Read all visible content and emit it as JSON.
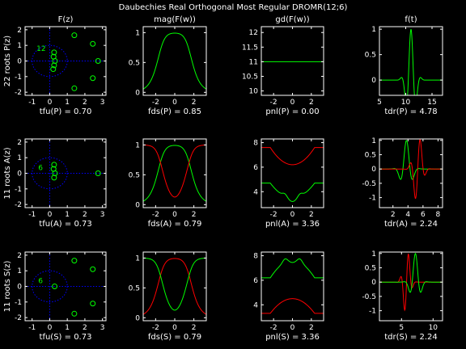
{
  "title": "Daubechies Real Orthogonal Most Regular DROMR(12;6)",
  "colors": {
    "background": "#000000",
    "axes": "#ffffff",
    "green": "#00ff00",
    "red": "#ff0000",
    "blue": "#0000ff"
  },
  "chart_data": [
    {
      "id": "p-roots",
      "type": "scatter",
      "title": "F(z)",
      "ylabel": "22 roots P(z)",
      "xlabel": "tfu(P) = 0.70",
      "xlim": [
        -1.4,
        3.2
      ],
      "ylim": [
        -2.2,
        2.2
      ],
      "xticks": [
        -1,
        0,
        1,
        2,
        3
      ],
      "yticks": [
        -2,
        -1,
        0,
        1,
        2
      ],
      "unit_circle": true,
      "multiplicity": {
        "value": "12",
        "at": [
          -0.75,
          0.65
        ]
      },
      "points": [
        [
          1.4,
          1.65
        ],
        [
          2.45,
          1.1
        ],
        [
          2.75,
          0.0
        ],
        [
          2.45,
          -1.1
        ],
        [
          1.4,
          -1.75
        ],
        [
          0.25,
          0.55
        ],
        [
          0.22,
          0.28
        ],
        [
          0.3,
          0.0
        ],
        [
          0.25,
          -0.28
        ],
        [
          0.2,
          -0.52
        ]
      ]
    },
    {
      "id": "p-mag",
      "type": "line",
      "title": "mag(F(w))",
      "xlabel": "fds(P) = 0.85",
      "xlim": [
        -3.3,
        3.3
      ],
      "ylim": [
        -0.05,
        1.1
      ],
      "xticks": [
        -2,
        0,
        2
      ],
      "yticks": [
        0,
        0.5,
        1
      ],
      "series": [
        {
          "color": "green",
          "kind": "mag_green"
        }
      ]
    },
    {
      "id": "p-gd",
      "type": "line",
      "title": "gd(F(w))",
      "xlabel": "pnl(P) = 0.00",
      "xlim": [
        -3.3,
        3.3
      ],
      "ylim": [
        9.85,
        12.2
      ],
      "xticks": [
        -2,
        0,
        2
      ],
      "yticks": [
        10,
        10.5,
        11,
        11.5,
        12
      ],
      "series": [
        {
          "color": "green",
          "kind": "const",
          "value": 11
        }
      ]
    },
    {
      "id": "p-ft",
      "type": "line",
      "title": "f(t)",
      "xlabel": "tdr(P) = 4.78",
      "xlim": [
        5,
        17
      ],
      "ylim": [
        -0.3,
        1.05
      ],
      "xticks": [
        5,
        10,
        15
      ],
      "yticks": [
        0,
        0.5,
        1
      ],
      "series": [
        {
          "color": "green",
          "kind": "wavelet",
          "center": 11,
          "width": 1.1,
          "freq": 1.4,
          "amp": 1.0
        }
      ]
    },
    {
      "id": "a-roots",
      "type": "scatter",
      "ylabel": "11 roots A(z)",
      "xlabel": "tfu(A) = 0.73",
      "xlim": [
        -1.4,
        3.2
      ],
      "ylim": [
        -2.2,
        2.2
      ],
      "xticks": [
        -1,
        0,
        1,
        2,
        3
      ],
      "yticks": [
        -2,
        -1,
        0,
        1,
        2
      ],
      "unit_circle": true,
      "multiplicity": {
        "value": "6",
        "at": [
          -0.65,
          0.2
        ]
      },
      "points": [
        [
          0.25,
          0.55
        ],
        [
          0.22,
          0.28
        ],
        [
          0.3,
          0.0
        ],
        [
          0.25,
          -0.28
        ],
        [
          2.75,
          0.0
        ]
      ]
    },
    {
      "id": "a-mag",
      "type": "line",
      "xlabel": "fds(A) = 0.79",
      "xlim": [
        -3.3,
        3.3
      ],
      "ylim": [
        -0.05,
        1.1
      ],
      "xticks": [
        -2,
        0,
        2
      ],
      "yticks": [
        0,
        0.5,
        1
      ],
      "series": [
        {
          "color": "green",
          "kind": "mag_green"
        },
        {
          "color": "red",
          "kind": "mag_red"
        }
      ]
    },
    {
      "id": "a-gd",
      "type": "line",
      "xlabel": "pnl(A) = 3.36",
      "xlim": [
        -3.3,
        3.3
      ],
      "ylim": [
        2.7,
        8.3
      ],
      "xticks": [
        -2,
        0,
        2
      ],
      "yticks": [
        4,
        6,
        8
      ],
      "series": [
        {
          "color": "red",
          "kind": "gd_a_red"
        },
        {
          "color": "green",
          "kind": "gd_a_green"
        }
      ]
    },
    {
      "id": "a-ft",
      "type": "line",
      "xlabel": "tdr(A) = 2.24",
      "xlim": [
        0.2,
        8.6
      ],
      "ylim": [
        -1.35,
        1.05
      ],
      "xticks": [
        2,
        4,
        6,
        8
      ],
      "yticks": [
        -1,
        -0.5,
        0,
        0.5,
        1
      ],
      "series": [
        {
          "color": "green",
          "kind": "wavelet",
          "center": 3.8,
          "width": 0.85,
          "freq": 1.5,
          "amp": 1.0
        },
        {
          "color": "red",
          "kind": "wavelet_odd",
          "center": 5.3,
          "width": 0.75,
          "freq": 2.0,
          "amp": 1.25
        }
      ]
    },
    {
      "id": "s-roots",
      "type": "scatter",
      "ylabel": "11 roots S(z)",
      "xlabel": "tfu(S) = 0.73",
      "xlim": [
        -1.4,
        3.2
      ],
      "ylim": [
        -2.2,
        2.2
      ],
      "xticks": [
        -1,
        0,
        1,
        2,
        3
      ],
      "yticks": [
        -2,
        -1,
        0,
        1,
        2
      ],
      "unit_circle": true,
      "multiplicity": {
        "value": "6",
        "at": [
          -0.65,
          0.2
        ]
      },
      "points": [
        [
          1.4,
          1.65
        ],
        [
          2.45,
          1.1
        ],
        [
          0.28,
          0.0
        ],
        [
          2.45,
          -1.1
        ],
        [
          1.4,
          -1.75
        ]
      ]
    },
    {
      "id": "s-mag",
      "type": "line",
      "xlabel": "fds(S) = 0.79",
      "xlim": [
        -3.3,
        3.3
      ],
      "ylim": [
        -0.05,
        1.1
      ],
      "xticks": [
        -2,
        0,
        2
      ],
      "yticks": [
        0,
        0.5,
        1
      ],
      "series": [
        {
          "color": "red",
          "kind": "mag_green"
        },
        {
          "color": "green",
          "kind": "mag_red"
        }
      ]
    },
    {
      "id": "s-gd",
      "type": "line",
      "xlabel": "pnl(S) = 3.36",
      "xlim": [
        -3.3,
        3.3
      ],
      "ylim": [
        2.7,
        8.3
      ],
      "xticks": [
        -2,
        0,
        2
      ],
      "yticks": [
        4,
        6,
        8
      ],
      "series": [
        {
          "color": "green",
          "kind": "gd_s_green"
        },
        {
          "color": "red",
          "kind": "gd_s_red"
        }
      ]
    },
    {
      "id": "s-ft",
      "type": "line",
      "xlabel": "tdr(S) = 2.24",
      "xlim": [
        1.5,
        11.5
      ],
      "ylim": [
        -1.35,
        1.05
      ],
      "xticks": [
        5,
        10
      ],
      "yticks": [
        -1,
        -0.5,
        0,
        0.5,
        1
      ],
      "series": [
        {
          "color": "red",
          "kind": "wavelet_odd",
          "center": 5.8,
          "width": 0.7,
          "freq": 2.1,
          "amp": 1.2
        },
        {
          "color": "green",
          "kind": "wavelet",
          "center": 7.2,
          "width": 0.9,
          "freq": 1.4,
          "amp": 1.0
        }
      ]
    }
  ]
}
